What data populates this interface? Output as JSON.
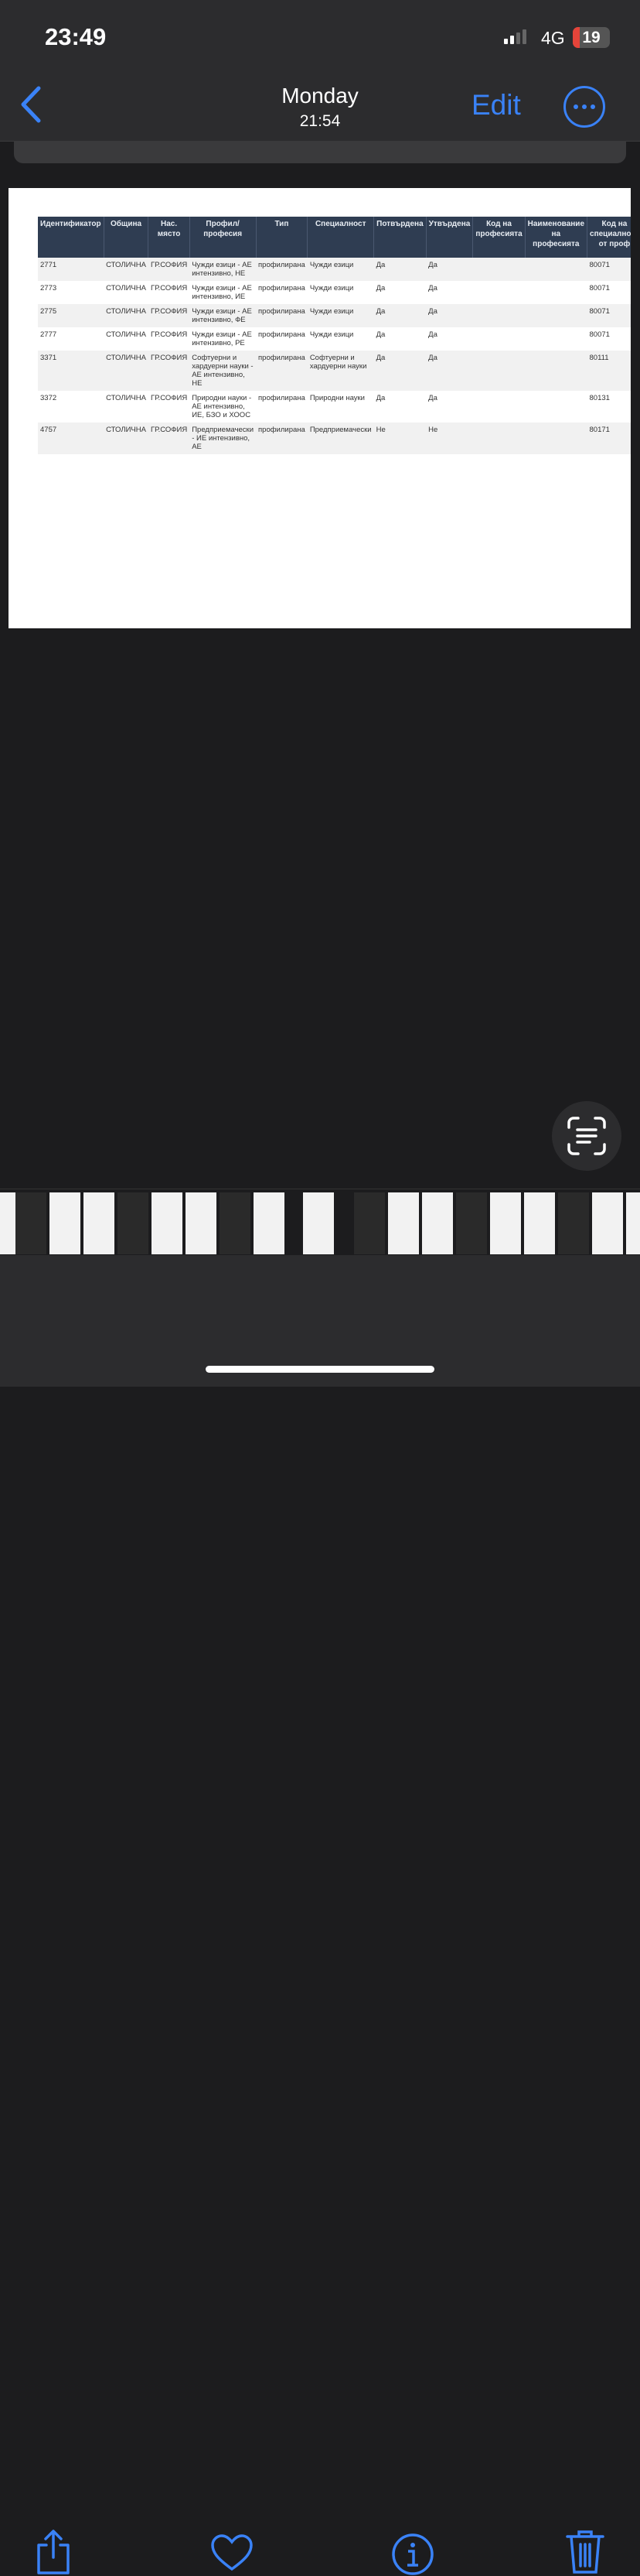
{
  "status": {
    "time": "23:49",
    "network": "4G",
    "battery": "19",
    "battery_level": 19
  },
  "nav": {
    "title": "Monday",
    "subtitle": "21:54",
    "edit": "Edit"
  },
  "accent": "#3a82f7",
  "table": {
    "headers": [
      "Идентификатор",
      "Община",
      "Нас. място",
      "Профил/ професия",
      "Тип",
      "Специалност",
      "Потвърдена",
      "Утвърдена",
      "Код на професията",
      "Наименование на професията",
      "Код на специалност от проф"
    ],
    "rows": [
      [
        "2771",
        "СТОЛИЧНА",
        "ГР.СОФИЯ",
        "Чужди езици - АЕ интензивно, НЕ",
        "профилирана",
        "Чужди езици",
        "Да",
        "Да",
        "",
        "",
        "80071"
      ],
      [
        "2773",
        "СТОЛИЧНА",
        "ГР.СОФИЯ",
        "Чужди езици - АЕ интензивно, ИЕ",
        "профилирана",
        "Чужди езици",
        "Да",
        "Да",
        "",
        "",
        "80071"
      ],
      [
        "2775",
        "СТОЛИЧНА",
        "ГР.СОФИЯ",
        "Чужди езици - АЕ интензивно, ФЕ",
        "профилирана",
        "Чужди езици",
        "Да",
        "Да",
        "",
        "",
        "80071"
      ],
      [
        "2777",
        "СТОЛИЧНА",
        "ГР.СОФИЯ",
        "Чужди езици - АЕ интензивно, РЕ",
        "профилирана",
        "Чужди езици",
        "Да",
        "Да",
        "",
        "",
        "80071"
      ],
      [
        "3371",
        "СТОЛИЧНА",
        "ГР.СОФИЯ",
        "Софтуерни и хардуерни науки - АЕ интензивно, НЕ",
        "профилирана",
        "Софтуерни и хардуерни науки",
        "Да",
        "Да",
        "",
        "",
        "80111"
      ],
      [
        "3372",
        "СТОЛИЧНА",
        "ГР.СОФИЯ",
        "Природни науки - АЕ интензивно, ИЕ, БЗО и ХООС",
        "профилирана",
        "Природни науки",
        "Да",
        "Да",
        "",
        "",
        "80131"
      ],
      [
        "4757",
        "СТОЛИЧНА",
        "ГР.СОФИЯ",
        "Предприемачески - ИЕ интензивно, АЕ",
        "профилирана",
        "Предприемачески",
        "Не",
        "Не",
        "",
        "",
        "80171"
      ]
    ]
  },
  "toolbar": {
    "icons": [
      "share-icon",
      "heart-icon",
      "info-icon",
      "trash-icon"
    ]
  }
}
